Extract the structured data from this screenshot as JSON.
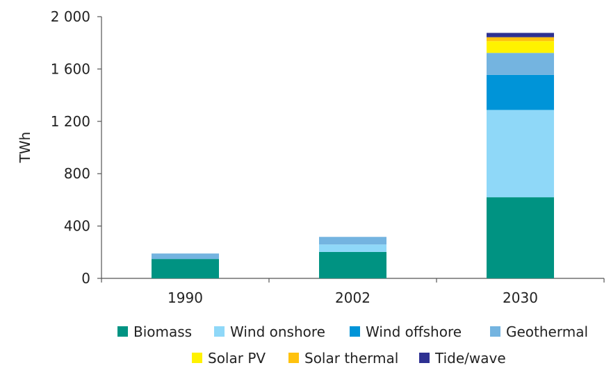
{
  "chart_data": {
    "type": "bar",
    "stacked": true,
    "categories": [
      "1990",
      "2002",
      "2030"
    ],
    "ylabel": "TWh",
    "xlabel": "",
    "ylim": [
      0,
      2000
    ],
    "yticks": [
      0,
      400,
      800,
      1200,
      1600,
      2000
    ],
    "ytick_labels": [
      "0",
      "400",
      "800",
      "1 200",
      "1 600",
      "2 000"
    ],
    "grid": false,
    "legend_position": "bottom",
    "series": [
      {
        "name": "Biomass",
        "color": "#009382",
        "values": [
          148,
          202,
          620
        ]
      },
      {
        "name": "Wind onshore",
        "color": "#8fd8f8",
        "values": [
          0,
          57,
          667
        ]
      },
      {
        "name": "Wind offshore",
        "color": "#0094d8",
        "values": [
          0,
          0,
          268
        ]
      },
      {
        "name": "Geothermal",
        "color": "#74b4e0",
        "values": [
          42,
          58,
          168
        ]
      },
      {
        "name": "Solar PV",
        "color": "#fff200",
        "values": [
          0,
          0,
          90
        ]
      },
      {
        "name": "Solar thermal",
        "color": "#ffc20e",
        "values": [
          0,
          0,
          30
        ]
      },
      {
        "name": "Tide/wave",
        "color": "#2e3192",
        "values": [
          0,
          0,
          33
        ]
      }
    ]
  }
}
